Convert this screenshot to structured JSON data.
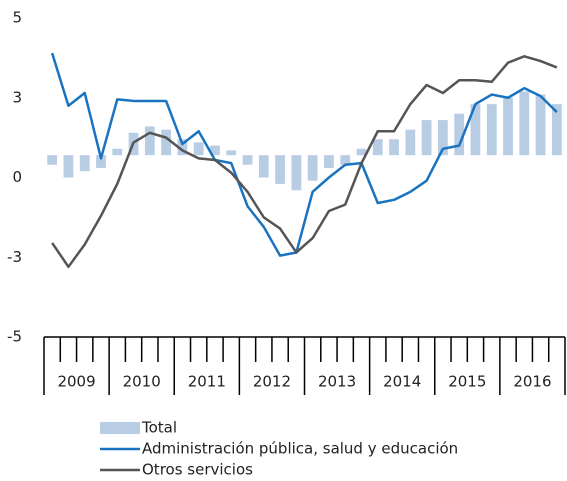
{
  "chart_data": {
    "type": "bar-line",
    "years": [
      "2009",
      "2010",
      "2011",
      "2012",
      "2013",
      "2014",
      "2015",
      "2016"
    ],
    "ylim": [
      -5,
      5
    ],
    "yticks": [
      {
        "value": 5,
        "label": "5"
      },
      {
        "value": 2.5,
        "label": "3"
      },
      0,
      {
        "value": -2.5,
        "label": "-3"
      },
      -5
    ],
    "y2lim": [
      -5.7,
      4.3
    ],
    "series": [
      {
        "name": "Total",
        "type": "bar",
        "axis": "y2",
        "color": "#b8cce4",
        "values": [
          -0.3,
          -0.7,
          -0.5,
          -0.4,
          0.2,
          0.7,
          0.9,
          0.8,
          0.5,
          0.4,
          0.3,
          0.15,
          -0.3,
          -0.7,
          -0.9,
          -1.1,
          -0.8,
          -0.4,
          -0.3,
          0.2,
          0.5,
          0.5,
          0.8,
          1.1,
          1.1,
          1.3,
          1.6,
          1.6,
          1.8,
          2.0,
          1.9,
          1.6
        ]
      },
      {
        "name": "Administración pública, salud y educación",
        "type": "line",
        "color": "#1a73c0",
        "values": [
          3.9,
          2.25,
          2.65,
          0.6,
          2.45,
          2.4,
          2.4,
          2.4,
          1.05,
          1.45,
          0.55,
          0.45,
          -0.9,
          -1.55,
          -2.45,
          -2.35,
          -0.45,
          0,
          0.4,
          0.45,
          -0.8,
          -0.7,
          -0.45,
          -0.1,
          0.9,
          1.0,
          2.3,
          2.6,
          2.5,
          2.8,
          2.55,
          2.05
        ]
      },
      {
        "name": "Otros servicios",
        "type": "line",
        "color": "#555555",
        "values": [
          -2.05,
          -2.8,
          -2.1,
          -1.2,
          -0.2,
          1.1,
          1.4,
          1.25,
          0.85,
          0.6,
          0.55,
          0.15,
          -0.45,
          -1.25,
          -1.6,
          -2.35,
          -1.9,
          -1.05,
          -0.85,
          0.45,
          1.45,
          1.45,
          2.3,
          2.9,
          2.65,
          3.05,
          3.05,
          3.0,
          3.6,
          3.8,
          3.65,
          3.45
        ]
      }
    ]
  }
}
